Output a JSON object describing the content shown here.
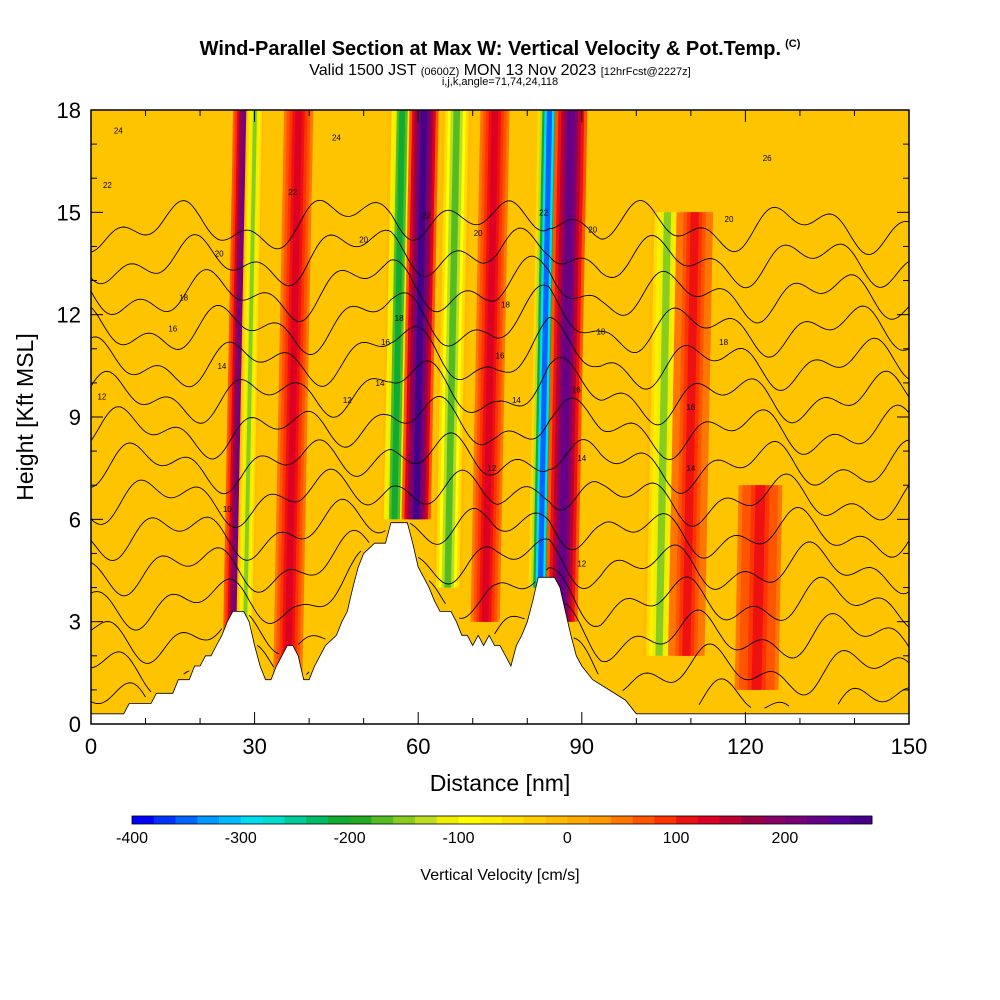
{
  "title": {
    "main": "Wind-Parallel Section at Max W: Vertical Velocity & Pot.Temp.",
    "copyright": "(C)",
    "valid_prefix": "Valid 1500 JST",
    "valid_utc": "(0600Z)",
    "valid_date": "MON 13 Nov 2023",
    "forecast": "[12hrFcst@2227z]",
    "indices": "i,j,k,angle=71,74,24,118"
  },
  "chart_data": {
    "type": "heatmap",
    "xlabel": "Distance [nm]",
    "ylabel": "Height [Kft MSL]",
    "xlim": [
      0,
      150
    ],
    "ylim": [
      0,
      18
    ],
    "xticks": [
      0,
      30,
      60,
      90,
      120,
      150
    ],
    "yticks": [
      0,
      3,
      6,
      9,
      12,
      15,
      18
    ],
    "colorbar": {
      "title": "Vertical Velocity [cm/s]",
      "range": [
        -400,
        280
      ],
      "step": 20,
      "tick_values": [
        -400,
        -300,
        -200,
        -100,
        0,
        100,
        200
      ],
      "tick_labels": [
        "-400",
        "-300",
        "-200",
        "-100",
        "0",
        "100",
        "200"
      ],
      "colors": [
        "#0000ff",
        "#0033ff",
        "#0066ff",
        "#0099ff",
        "#00bbff",
        "#00ddee",
        "#00ddcc",
        "#00cc99",
        "#00bb66",
        "#11aa33",
        "#22aa22",
        "#55bb22",
        "#88cc22",
        "#bbdd22",
        "#eeee00",
        "#ffff00",
        "#ffee00",
        "#ffdd00",
        "#ffcc00",
        "#ffbb00",
        "#ffaa00",
        "#ff9900",
        "#ff7700",
        "#ff5500",
        "#ff3300",
        "#ee1111",
        "#dd0022",
        "#bb0033",
        "#990044",
        "#880066",
        "#770077",
        "#660088",
        "#550099",
        "#440088"
      ]
    },
    "velocity_bands": [
      {
        "x": 27,
        "width": 1.5,
        "peak": 200,
        "ymin": 2,
        "ymax": 18
      },
      {
        "x": 29,
        "width": 1.2,
        "peak": -150,
        "ymin": 2,
        "ymax": 18
      },
      {
        "x": 37,
        "width": 2.0,
        "peak": 120,
        "ymin": 1,
        "ymax": 18
      },
      {
        "x": 56,
        "width": 1.8,
        "peak": -220,
        "ymin": 6,
        "ymax": 18
      },
      {
        "x": 60,
        "width": 2.0,
        "peak": 260,
        "ymin": 6,
        "ymax": 18
      },
      {
        "x": 66,
        "width": 2.0,
        "peak": -180,
        "ymin": 4,
        "ymax": 18
      },
      {
        "x": 73,
        "width": 2.0,
        "peak": 120,
        "ymin": 3,
        "ymax": 18
      },
      {
        "x": 83,
        "width": 1.6,
        "peak": -360,
        "ymin": 4,
        "ymax": 18
      },
      {
        "x": 87,
        "width": 2.2,
        "peak": 220,
        "ymin": 3,
        "ymax": 18
      },
      {
        "x": 105,
        "width": 2.2,
        "peak": -150,
        "ymin": 2,
        "ymax": 15
      },
      {
        "x": 110,
        "width": 2.5,
        "peak": 100,
        "ymin": 2,
        "ymax": 15
      },
      {
        "x": 123,
        "width": 3.0,
        "peak": 110,
        "ymin": 1,
        "ymax": 7
      }
    ],
    "terrain": [
      [
        0,
        0.3
      ],
      [
        6,
        0.3
      ],
      [
        7,
        0.6
      ],
      [
        11,
        0.6
      ],
      [
        12,
        0.9
      ],
      [
        15,
        0.9
      ],
      [
        16,
        1.3
      ],
      [
        18,
        1.3
      ],
      [
        19,
        1.7
      ],
      [
        20,
        1.7
      ],
      [
        21,
        2.0
      ],
      [
        22,
        2.0
      ],
      [
        23,
        2.3
      ],
      [
        24,
        2.6
      ],
      [
        25,
        3.0
      ],
      [
        26,
        3.3
      ],
      [
        28,
        3.3
      ],
      [
        29,
        3.0
      ],
      [
        30,
        2.3
      ],
      [
        31,
        1.7
      ],
      [
        32,
        1.3
      ],
      [
        33,
        1.3
      ],
      [
        34,
        1.7
      ],
      [
        35,
        2.0
      ],
      [
        36,
        2.3
      ],
      [
        37,
        2.3
      ],
      [
        38,
        2.0
      ],
      [
        39,
        1.3
      ],
      [
        40,
        1.3
      ],
      [
        41,
        1.7
      ],
      [
        42,
        2.0
      ],
      [
        43,
        2.3
      ],
      [
        45,
        2.6
      ],
      [
        46,
        3.0
      ],
      [
        47,
        3.3
      ],
      [
        48,
        4.0
      ],
      [
        49,
        4.6
      ],
      [
        50,
        5.0
      ],
      [
        52,
        5.3
      ],
      [
        54,
        5.3
      ],
      [
        55,
        5.9
      ],
      [
        58,
        5.9
      ],
      [
        59,
        5.3
      ],
      [
        60,
        4.6
      ],
      [
        61,
        4.3
      ],
      [
        62,
        4.0
      ],
      [
        63,
        3.6
      ],
      [
        64,
        3.3
      ],
      [
        66,
        3.3
      ],
      [
        67,
        3.0
      ],
      [
        68,
        2.6
      ],
      [
        69,
        2.6
      ],
      [
        70,
        2.3
      ],
      [
        71,
        2.6
      ],
      [
        72,
        2.3
      ],
      [
        73,
        2.6
      ],
      [
        74,
        2.3
      ],
      [
        75,
        2.3
      ],
      [
        76,
        2.0
      ],
      [
        77,
        1.7
      ],
      [
        78,
        2.3
      ],
      [
        79,
        2.6
      ],
      [
        80,
        3.0
      ],
      [
        81,
        3.6
      ],
      [
        82,
        4.3
      ],
      [
        85,
        4.3
      ],
      [
        86,
        4.0
      ],
      [
        87,
        3.3
      ],
      [
        88,
        2.6
      ],
      [
        89,
        2.0
      ],
      [
        90,
        1.7
      ],
      [
        92,
        1.3
      ],
      [
        95,
        1.0
      ],
      [
        98,
        0.7
      ],
      [
        100,
        0.3
      ],
      [
        150,
        0.3
      ]
    ],
    "isentropes": [
      10,
      11,
      12,
      13,
      14,
      15,
      16,
      17,
      18,
      19,
      20,
      21,
      22,
      23,
      24
    ],
    "contour_labels": [
      {
        "text": "24",
        "x": 5,
        "y": 17.4
      },
      {
        "text": "22",
        "x": 3,
        "y": 15.8
      },
      {
        "text": "20",
        "x": 23.5,
        "y": 13.8
      },
      {
        "text": "18",
        "x": 17,
        "y": 12.5
      },
      {
        "text": "16",
        "x": 15,
        "y": 11.6
      },
      {
        "text": "14",
        "x": 24,
        "y": 10.5
      },
      {
        "text": "12",
        "x": 2,
        "y": 9.6
      },
      {
        "text": "10",
        "x": 25,
        "y": 6.3
      },
      {
        "text": "22",
        "x": 37,
        "y": 15.6
      },
      {
        "text": "24",
        "x": 45,
        "y": 17.2
      },
      {
        "text": "20",
        "x": 50,
        "y": 14.2
      },
      {
        "text": "16",
        "x": 54,
        "y": 11.2
      },
      {
        "text": "14",
        "x": 53,
        "y": 10.0
      },
      {
        "text": "12",
        "x": 47,
        "y": 9.5
      },
      {
        "text": "18",
        "x": 56.5,
        "y": 11.9
      },
      {
        "text": "22",
        "x": 61.5,
        "y": 14.9
      },
      {
        "text": "20",
        "x": 71,
        "y": 14.4
      },
      {
        "text": "18",
        "x": 76,
        "y": 12.3
      },
      {
        "text": "16",
        "x": 75,
        "y": 10.8
      },
      {
        "text": "14",
        "x": 78,
        "y": 9.5
      },
      {
        "text": "12",
        "x": 73.5,
        "y": 7.5
      },
      {
        "text": "22",
        "x": 83,
        "y": 15.0
      },
      {
        "text": "20",
        "x": 92,
        "y": 14.5
      },
      {
        "text": "18",
        "x": 93.5,
        "y": 11.5
      },
      {
        "text": "16",
        "x": 89,
        "y": 9.8
      },
      {
        "text": "14",
        "x": 90,
        "y": 7.8
      },
      {
        "text": "12",
        "x": 90,
        "y": 4.7
      },
      {
        "text": "26",
        "x": 124,
        "y": 16.6
      },
      {
        "text": "20",
        "x": 117,
        "y": 14.8
      },
      {
        "text": "18",
        "x": 116,
        "y": 11.2
      },
      {
        "text": "16",
        "x": 110,
        "y": 9.3
      },
      {
        "text": "14",
        "x": 110,
        "y": 7.5
      }
    ]
  },
  "colors": {
    "background": "#ffc400",
    "frame": "#000000",
    "contour": "#000000",
    "terrain": "#ffffff"
  }
}
